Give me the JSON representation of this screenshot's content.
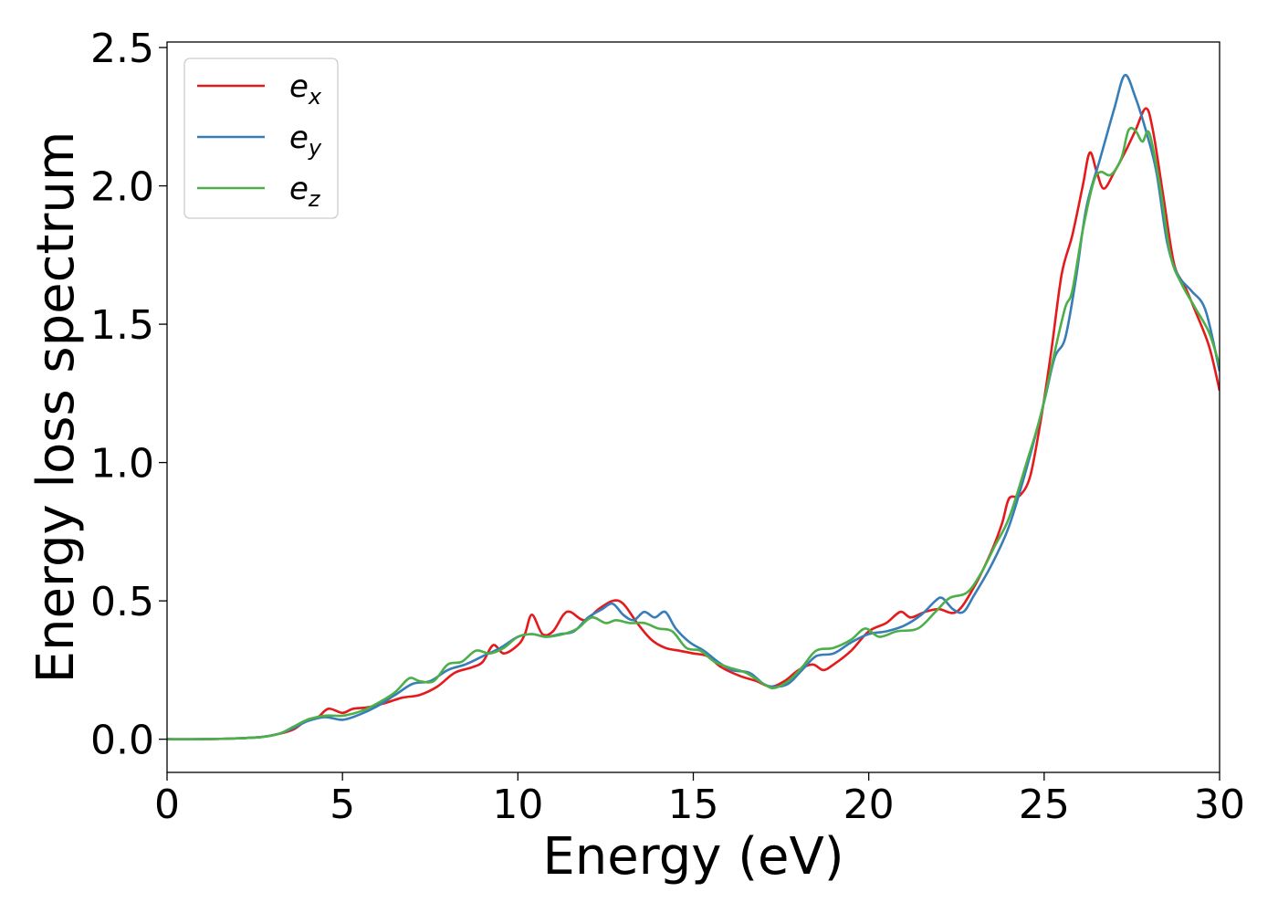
{
  "chart_data": {
    "type": "line",
    "title": "",
    "xlabel": "Energy (eV)",
    "ylabel": "Energy loss spectrum",
    "xlim": [
      0,
      30
    ],
    "ylim": [
      -0.12,
      2.52
    ],
    "xticks": [
      0,
      5,
      10,
      15,
      20,
      25,
      30
    ],
    "xtick_labels": [
      "0",
      "5",
      "10",
      "15",
      "20",
      "25",
      "30"
    ],
    "yticks": [
      0.0,
      0.5,
      1.0,
      1.5,
      2.0,
      2.5
    ],
    "ytick_labels": [
      "0.0",
      "0.5",
      "1.0",
      "1.5",
      "2.0",
      "2.5"
    ],
    "grid": false,
    "legend": "upper-left",
    "series": [
      {
        "name": "e",
        "subscript": "x",
        "color": "#e41a1c",
        "points": [
          [
            0,
            0.0
          ],
          [
            1,
            0.0
          ],
          [
            2,
            0.003
          ],
          [
            2.7,
            0.008
          ],
          [
            3.2,
            0.02
          ],
          [
            3.6,
            0.035
          ],
          [
            4.0,
            0.07
          ],
          [
            4.3,
            0.08
          ],
          [
            4.6,
            0.11
          ],
          [
            5.0,
            0.095
          ],
          [
            5.3,
            0.11
          ],
          [
            5.7,
            0.115
          ],
          [
            6.2,
            0.13
          ],
          [
            6.7,
            0.15
          ],
          [
            7.2,
            0.16
          ],
          [
            7.7,
            0.19
          ],
          [
            8.2,
            0.24
          ],
          [
            8.7,
            0.26
          ],
          [
            9.0,
            0.28
          ],
          [
            9.3,
            0.34
          ],
          [
            9.6,
            0.31
          ],
          [
            10.0,
            0.34
          ],
          [
            10.2,
            0.38
          ],
          [
            10.4,
            0.45
          ],
          [
            10.7,
            0.38
          ],
          [
            11.0,
            0.39
          ],
          [
            11.3,
            0.45
          ],
          [
            11.5,
            0.46
          ],
          [
            11.9,
            0.43
          ],
          [
            12.3,
            0.47
          ],
          [
            12.7,
            0.5
          ],
          [
            13.0,
            0.49
          ],
          [
            13.4,
            0.42
          ],
          [
            13.8,
            0.36
          ],
          [
            14.2,
            0.33
          ],
          [
            14.6,
            0.32
          ],
          [
            15.0,
            0.31
          ],
          [
            15.4,
            0.3
          ],
          [
            15.8,
            0.26
          ],
          [
            16.3,
            0.23
          ],
          [
            16.8,
            0.21
          ],
          [
            17.2,
            0.19
          ],
          [
            17.6,
            0.21
          ],
          [
            18.0,
            0.25
          ],
          [
            18.4,
            0.27
          ],
          [
            18.7,
            0.25
          ],
          [
            19.0,
            0.27
          ],
          [
            19.5,
            0.32
          ],
          [
            20.0,
            0.39
          ],
          [
            20.5,
            0.42
          ],
          [
            20.9,
            0.46
          ],
          [
            21.2,
            0.44
          ],
          [
            21.6,
            0.46
          ],
          [
            22.0,
            0.47
          ],
          [
            22.5,
            0.46
          ],
          [
            23.0,
            0.55
          ],
          [
            23.5,
            0.68
          ],
          [
            23.8,
            0.78
          ],
          [
            24.0,
            0.87
          ],
          [
            24.3,
            0.88
          ],
          [
            24.6,
            0.95
          ],
          [
            24.9,
            1.15
          ],
          [
            25.2,
            1.4
          ],
          [
            25.5,
            1.68
          ],
          [
            25.8,
            1.82
          ],
          [
            26.1,
            2.0
          ],
          [
            26.3,
            2.12
          ],
          [
            26.5,
            2.05
          ],
          [
            26.7,
            1.99
          ],
          [
            27.0,
            2.05
          ],
          [
            27.3,
            2.12
          ],
          [
            27.6,
            2.2
          ],
          [
            27.9,
            2.28
          ],
          [
            28.1,
            2.2
          ],
          [
            28.4,
            1.96
          ],
          [
            28.7,
            1.72
          ],
          [
            29.0,
            1.64
          ],
          [
            29.3,
            1.55
          ],
          [
            29.7,
            1.42
          ],
          [
            30.0,
            1.26
          ]
        ]
      },
      {
        "name": "e",
        "subscript": "y",
        "color": "#377eb8",
        "points": [
          [
            0,
            0.0
          ],
          [
            1,
            0.0
          ],
          [
            2,
            0.003
          ],
          [
            2.7,
            0.008
          ],
          [
            3.2,
            0.02
          ],
          [
            3.6,
            0.04
          ],
          [
            4.0,
            0.065
          ],
          [
            4.5,
            0.08
          ],
          [
            5.0,
            0.07
          ],
          [
            5.5,
            0.09
          ],
          [
            6.0,
            0.12
          ],
          [
            6.5,
            0.16
          ],
          [
            7.0,
            0.2
          ],
          [
            7.5,
            0.21
          ],
          [
            8.0,
            0.25
          ],
          [
            8.5,
            0.27
          ],
          [
            9.0,
            0.3
          ],
          [
            9.5,
            0.33
          ],
          [
            10.0,
            0.37
          ],
          [
            10.4,
            0.38
          ],
          [
            10.8,
            0.37
          ],
          [
            11.2,
            0.38
          ],
          [
            11.6,
            0.39
          ],
          [
            12.0,
            0.44
          ],
          [
            12.4,
            0.47
          ],
          [
            12.7,
            0.49
          ],
          [
            13.0,
            0.45
          ],
          [
            13.3,
            0.43
          ],
          [
            13.6,
            0.46
          ],
          [
            13.9,
            0.44
          ],
          [
            14.2,
            0.46
          ],
          [
            14.5,
            0.4
          ],
          [
            14.9,
            0.35
          ],
          [
            15.3,
            0.32
          ],
          [
            15.7,
            0.28
          ],
          [
            16.1,
            0.25
          ],
          [
            16.6,
            0.24
          ],
          [
            17.0,
            0.2
          ],
          [
            17.3,
            0.19
          ],
          [
            17.7,
            0.2
          ],
          [
            18.1,
            0.25
          ],
          [
            18.5,
            0.3
          ],
          [
            19.0,
            0.31
          ],
          [
            19.5,
            0.35
          ],
          [
            20.0,
            0.38
          ],
          [
            20.5,
            0.39
          ],
          [
            21.0,
            0.41
          ],
          [
            21.5,
            0.45
          ],
          [
            21.9,
            0.5
          ],
          [
            22.1,
            0.51
          ],
          [
            22.4,
            0.47
          ],
          [
            22.7,
            0.46
          ],
          [
            23.0,
            0.52
          ],
          [
            23.5,
            0.63
          ],
          [
            24.0,
            0.77
          ],
          [
            24.5,
            0.98
          ],
          [
            25.0,
            1.22
          ],
          [
            25.3,
            1.38
          ],
          [
            25.6,
            1.45
          ],
          [
            25.9,
            1.66
          ],
          [
            26.2,
            1.92
          ],
          [
            26.6,
            2.1
          ],
          [
            27.0,
            2.28
          ],
          [
            27.3,
            2.4
          ],
          [
            27.6,
            2.32
          ],
          [
            27.9,
            2.2
          ],
          [
            28.2,
            2.05
          ],
          [
            28.5,
            1.8
          ],
          [
            28.8,
            1.68
          ],
          [
            29.2,
            1.62
          ],
          [
            29.6,
            1.55
          ],
          [
            30.0,
            1.33
          ]
        ]
      },
      {
        "name": "e",
        "subscript": "z",
        "color": "#4daf4a",
        "points": [
          [
            0,
            0.0
          ],
          [
            1,
            0.0
          ],
          [
            2,
            0.003
          ],
          [
            2.7,
            0.008
          ],
          [
            3.2,
            0.02
          ],
          [
            3.6,
            0.045
          ],
          [
            4.0,
            0.07
          ],
          [
            4.5,
            0.085
          ],
          [
            5.0,
            0.085
          ],
          [
            5.5,
            0.1
          ],
          [
            6.0,
            0.13
          ],
          [
            6.5,
            0.17
          ],
          [
            6.9,
            0.22
          ],
          [
            7.2,
            0.21
          ],
          [
            7.6,
            0.21
          ],
          [
            8.0,
            0.27
          ],
          [
            8.4,
            0.28
          ],
          [
            8.8,
            0.32
          ],
          [
            9.2,
            0.31
          ],
          [
            9.6,
            0.33
          ],
          [
            10.0,
            0.37
          ],
          [
            10.4,
            0.38
          ],
          [
            10.8,
            0.37
          ],
          [
            11.3,
            0.38
          ],
          [
            11.7,
            0.4
          ],
          [
            12.1,
            0.44
          ],
          [
            12.5,
            0.42
          ],
          [
            12.8,
            0.43
          ],
          [
            13.2,
            0.42
          ],
          [
            13.6,
            0.42
          ],
          [
            14.0,
            0.4
          ],
          [
            14.4,
            0.39
          ],
          [
            14.8,
            0.33
          ],
          [
            15.2,
            0.32
          ],
          [
            15.6,
            0.28
          ],
          [
            16.0,
            0.26
          ],
          [
            16.5,
            0.24
          ],
          [
            17.0,
            0.2
          ],
          [
            17.3,
            0.185
          ],
          [
            17.7,
            0.21
          ],
          [
            18.1,
            0.26
          ],
          [
            18.5,
            0.32
          ],
          [
            19.0,
            0.33
          ],
          [
            19.5,
            0.36
          ],
          [
            19.9,
            0.4
          ],
          [
            20.3,
            0.37
          ],
          [
            20.8,
            0.39
          ],
          [
            21.4,
            0.4
          ],
          [
            21.9,
            0.46
          ],
          [
            22.3,
            0.51
          ],
          [
            22.8,
            0.53
          ],
          [
            23.2,
            0.6
          ],
          [
            23.6,
            0.7
          ],
          [
            24.0,
            0.8
          ],
          [
            24.5,
            1.0
          ],
          [
            24.9,
            1.17
          ],
          [
            25.3,
            1.4
          ],
          [
            25.6,
            1.56
          ],
          [
            25.8,
            1.62
          ],
          [
            26.1,
            1.84
          ],
          [
            26.4,
            2.01
          ],
          [
            26.6,
            2.05
          ],
          [
            26.9,
            2.04
          ],
          [
            27.2,
            2.1
          ],
          [
            27.4,
            2.2
          ],
          [
            27.6,
            2.2
          ],
          [
            27.8,
            2.16
          ],
          [
            28.0,
            2.19
          ],
          [
            28.3,
            2.0
          ],
          [
            28.6,
            1.75
          ],
          [
            28.9,
            1.65
          ],
          [
            29.3,
            1.56
          ],
          [
            29.7,
            1.47
          ],
          [
            30.0,
            1.35
          ]
        ]
      }
    ]
  }
}
